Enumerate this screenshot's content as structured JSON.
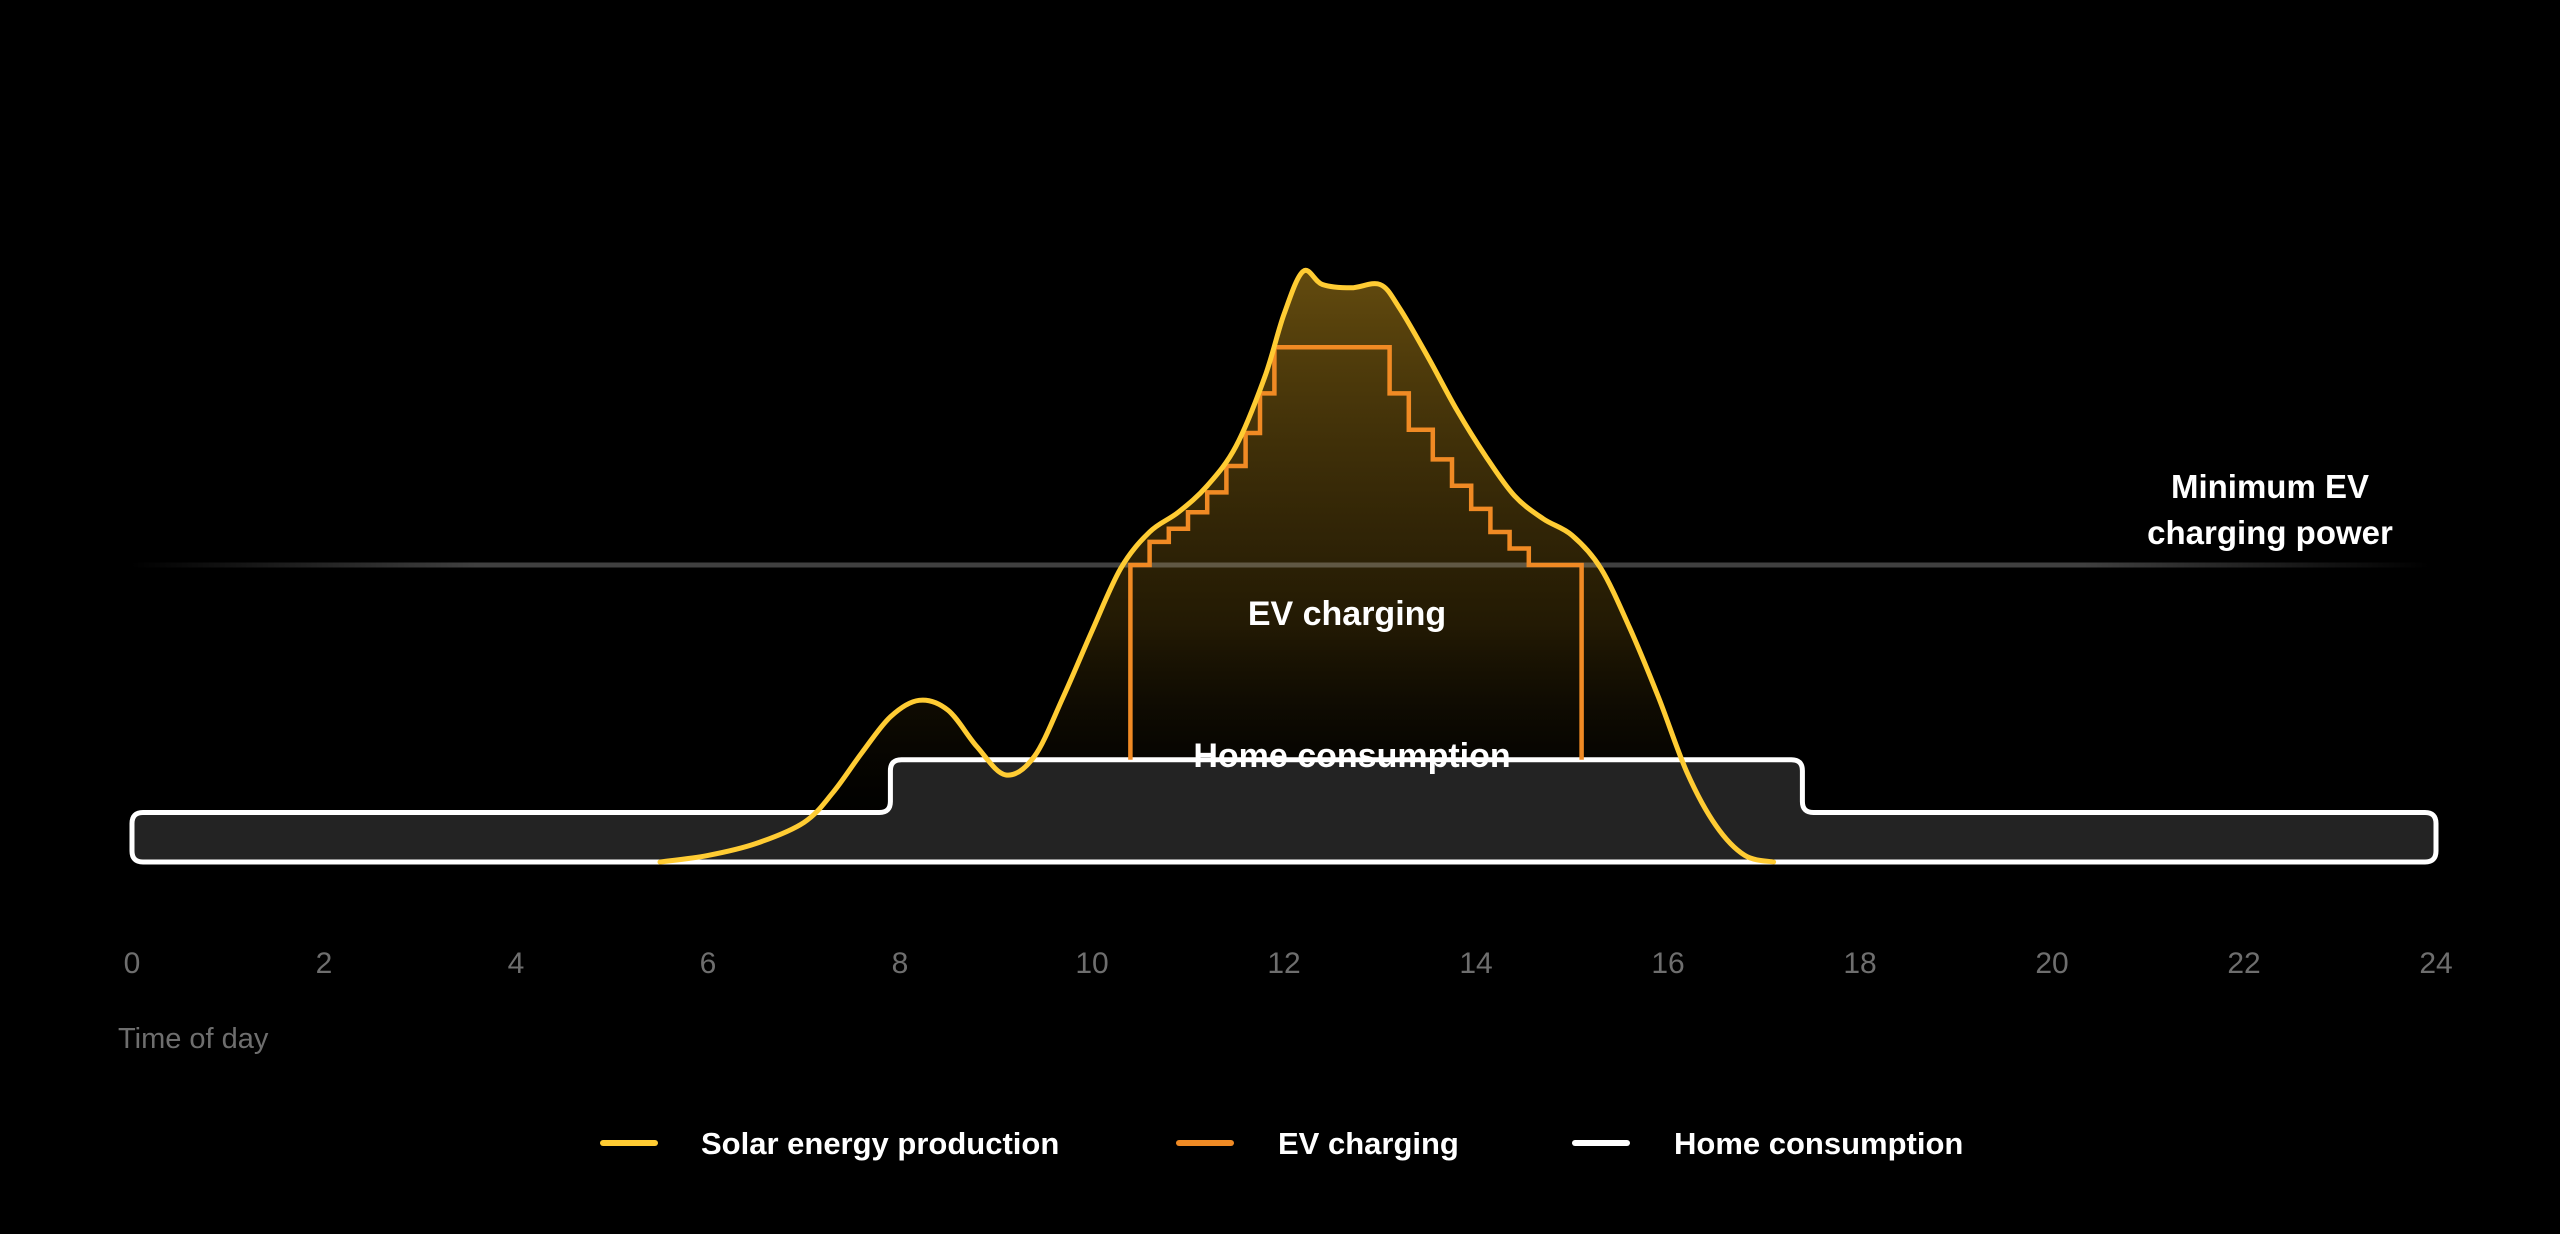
{
  "colors": {
    "background": "#000000",
    "solar": "#ffcc33",
    "ev": "#f08a24",
    "home": "#ffffff",
    "home_fill": "#232323",
    "tick": "#6e6e6e",
    "label": "#ffffff",
    "threshold": "#4a4a4a"
  },
  "chart_data": {
    "type": "area",
    "xlabel": "Time of day",
    "ylabel": "",
    "xlim": [
      0,
      24
    ],
    "x_ticks": [
      "0",
      "2",
      "4",
      "6",
      "8",
      "10",
      "12",
      "14",
      "16",
      "18",
      "20",
      "22",
      "24"
    ],
    "grid": false,
    "legend_position": "bottom-center",
    "annotations": {
      "threshold": "Minimum EV charging power",
      "ev_area": "EV charging",
      "home_area": "Home consumption"
    },
    "series": [
      {
        "name": "Solar energy production",
        "x": [
          5.5,
          6.0,
          6.5,
          7.0,
          7.3,
          7.6,
          7.9,
          8.2,
          8.5,
          8.8,
          9.1,
          9.4,
          9.7,
          10.0,
          10.3,
          10.6,
          10.9,
          11.2,
          11.5,
          11.8,
          12.0,
          12.2,
          12.4,
          12.7,
          13.0,
          13.2,
          13.5,
          13.8,
          14.1,
          14.4,
          14.7,
          15.0,
          15.3,
          15.6,
          15.9,
          16.2,
          16.5,
          16.8,
          17.1
        ],
        "values": [
          0.0,
          0.1,
          0.28,
          0.6,
          1.05,
          1.65,
          2.2,
          2.45,
          2.3,
          1.75,
          1.32,
          1.6,
          2.5,
          3.5,
          4.45,
          5.0,
          5.3,
          5.7,
          6.3,
          7.35,
          8.3,
          8.95,
          8.75,
          8.7,
          8.75,
          8.4,
          7.65,
          6.85,
          6.15,
          5.55,
          5.2,
          4.95,
          4.45,
          3.55,
          2.5,
          1.35,
          0.55,
          0.1,
          0.0
        ]
      },
      {
        "name": "EV charging",
        "x": [
          10.4,
          10.4,
          10.6,
          10.6,
          10.8,
          10.8,
          11.0,
          11.0,
          11.2,
          11.2,
          11.4,
          11.4,
          11.6,
          11.6,
          11.75,
          11.75,
          11.9,
          11.9,
          13.1,
          13.1,
          13.3,
          13.3,
          13.55,
          13.55,
          13.75,
          13.75,
          13.95,
          13.95,
          14.15,
          14.15,
          14.35,
          14.35,
          14.55,
          14.55,
          15.1,
          15.1
        ],
        "values": [
          1.55,
          4.5,
          4.5,
          4.85,
          4.85,
          5.05,
          5.05,
          5.3,
          5.3,
          5.6,
          5.6,
          6.0,
          6.0,
          6.5,
          6.5,
          7.1,
          7.1,
          7.8,
          7.8,
          7.1,
          7.1,
          6.55,
          6.55,
          6.1,
          6.1,
          5.7,
          5.7,
          5.35,
          5.35,
          5.0,
          5.0,
          4.75,
          4.75,
          4.5,
          4.5,
          1.55
        ]
      },
      {
        "name": "Home consumption",
        "x": [
          0,
          7.9,
          7.9,
          17.4,
          17.4,
          24
        ],
        "values": [
          0.75,
          0.75,
          1.55,
          1.55,
          0.75,
          0.75
        ]
      }
    ],
    "threshold_value": 4.5,
    "baseline": 0
  }
}
